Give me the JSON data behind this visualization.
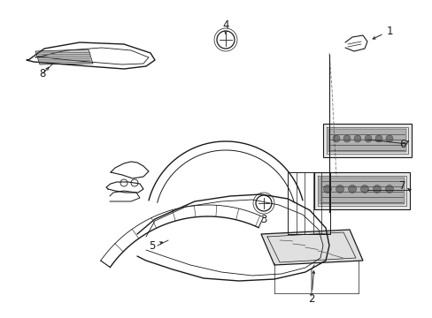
{
  "bg_color": "#ffffff",
  "line_color": "#1a1a1a",
  "fill_light": "#f0f0f0",
  "fill_mid": "#d8d8d8",
  "fill_dark": "#b0b0b0"
}
